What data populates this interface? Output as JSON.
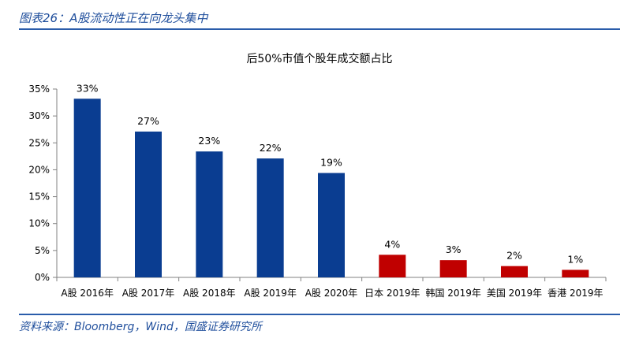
{
  "figure": {
    "title": "图表26：A股流动性正在向龙头集中",
    "source": "资料来源：Bloomberg，Wind，国盛证券研究所"
  },
  "chart_data": {
    "type": "bar",
    "title": "后50%市值个股年成交额占比",
    "categories": [
      "A股 2016年",
      "A股 2017年",
      "A股 2018年",
      "A股 2019年",
      "A股 2020年",
      "日本 2019年",
      "韩国 2019年",
      "美国 2019年",
      "香港 2019年"
    ],
    "values": [
      33,
      27,
      23,
      22,
      19,
      4,
      3,
      2,
      1
    ],
    "data_labels": [
      "33%",
      "27%",
      "23%",
      "22%",
      "19%",
      "4%",
      "3%",
      "2%",
      "1%"
    ],
    "plot_values": [
      33.2,
      27.1,
      23.4,
      22.1,
      19.4,
      4.2,
      3.2,
      2.1,
      1.4
    ],
    "y_ticks": [
      0,
      5,
      10,
      15,
      20,
      25,
      30,
      35
    ],
    "y_tick_labels": [
      "0%",
      "5%",
      "10%",
      "15%",
      "20%",
      "25%",
      "30%",
      "35%"
    ],
    "ylim": [
      0,
      35
    ],
    "grid": false,
    "colors": [
      "#0a3d91",
      "#0a3d91",
      "#0a3d91",
      "#0a3d91",
      "#0a3d91",
      "#c00000",
      "#c00000",
      "#c00000",
      "#c00000"
    ]
  }
}
